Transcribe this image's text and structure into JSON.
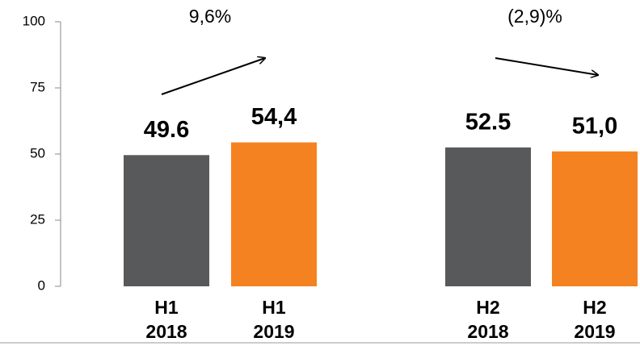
{
  "chart_data": {
    "type": "bar",
    "categories": [
      [
        "H1",
        "2018"
      ],
      [
        "H1",
        "2019"
      ],
      [
        "H2",
        "2018"
      ],
      [
        "H2",
        "2019"
      ]
    ],
    "values": [
      49.6,
      54.4,
      52.5,
      51.0
    ],
    "value_labels": [
      "49.6",
      "54,4",
      "52.5",
      "51,0"
    ],
    "colors": [
      "#58595b",
      "#f58220",
      "#58595b",
      "#f58220"
    ],
    "ylim": [
      0,
      100
    ],
    "yticks": [
      0,
      25,
      50,
      75,
      100
    ],
    "annotations": [
      {
        "text": "9,6%"
      },
      {
        "text": "(2,9)%"
      }
    ]
  }
}
